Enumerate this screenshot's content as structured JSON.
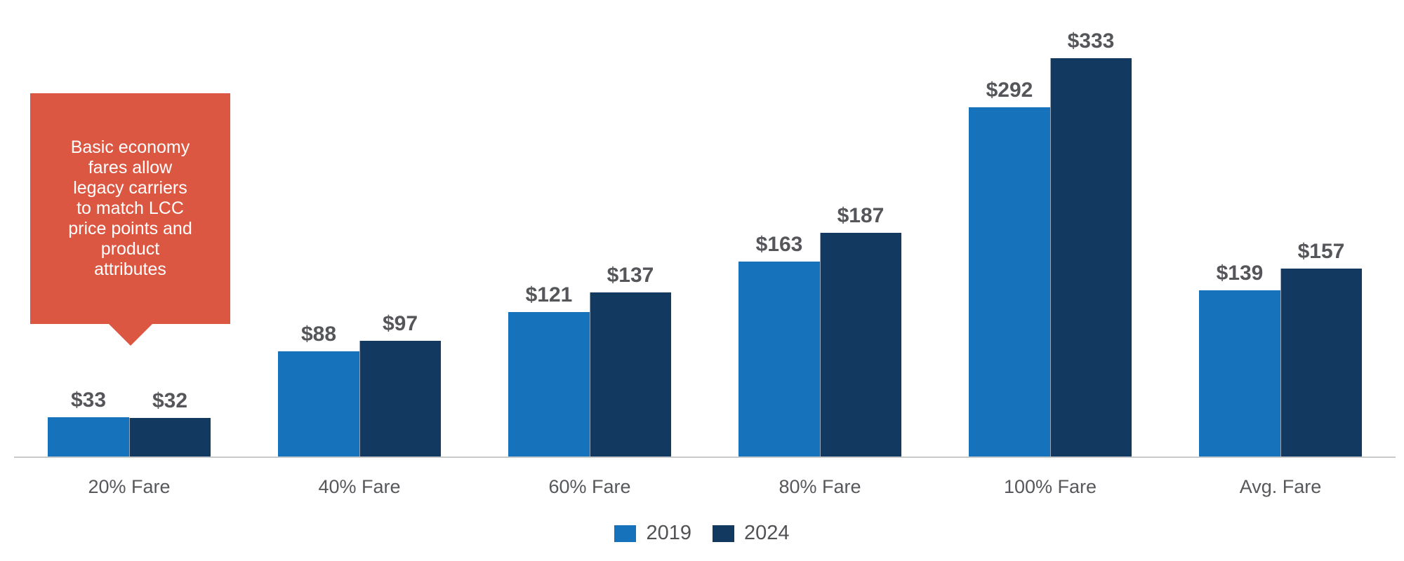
{
  "chart_data": {
    "type": "bar",
    "categories": [
      "20% Fare",
      "40% Fare",
      "60% Fare",
      "80% Fare",
      "100% Fare",
      "Avg. Fare"
    ],
    "series": [
      {
        "name": "2019",
        "color": "#1572bb",
        "values": [
          33,
          88,
          121,
          163,
          292,
          139
        ]
      },
      {
        "name": "2024",
        "color": "#123a60",
        "values": [
          32,
          97,
          137,
          187,
          333,
          157
        ]
      }
    ],
    "value_prefix": "$",
    "data_labels": [
      "$33",
      "$32",
      "$88",
      "$97",
      "$121",
      "$137",
      "$163",
      "$187",
      "$292",
      "$333",
      "$139",
      "$157"
    ],
    "title": "",
    "xlabel": "",
    "ylabel": "",
    "ylim": [
      0,
      333
    ],
    "grid": false,
    "legend_position": "bottom",
    "axis_line_color": "#c9cacb",
    "label_color": "#55565a"
  },
  "annotation": {
    "text": "Basic economy\nfares allow\nlegacy carriers\nto match LCC\nprice points and\nproduct\nattributes",
    "bg_color": "#db5742",
    "text_color": "#ffffff",
    "points_to": "20% Fare"
  },
  "legend": {
    "items": [
      "2019",
      "2024"
    ]
  }
}
